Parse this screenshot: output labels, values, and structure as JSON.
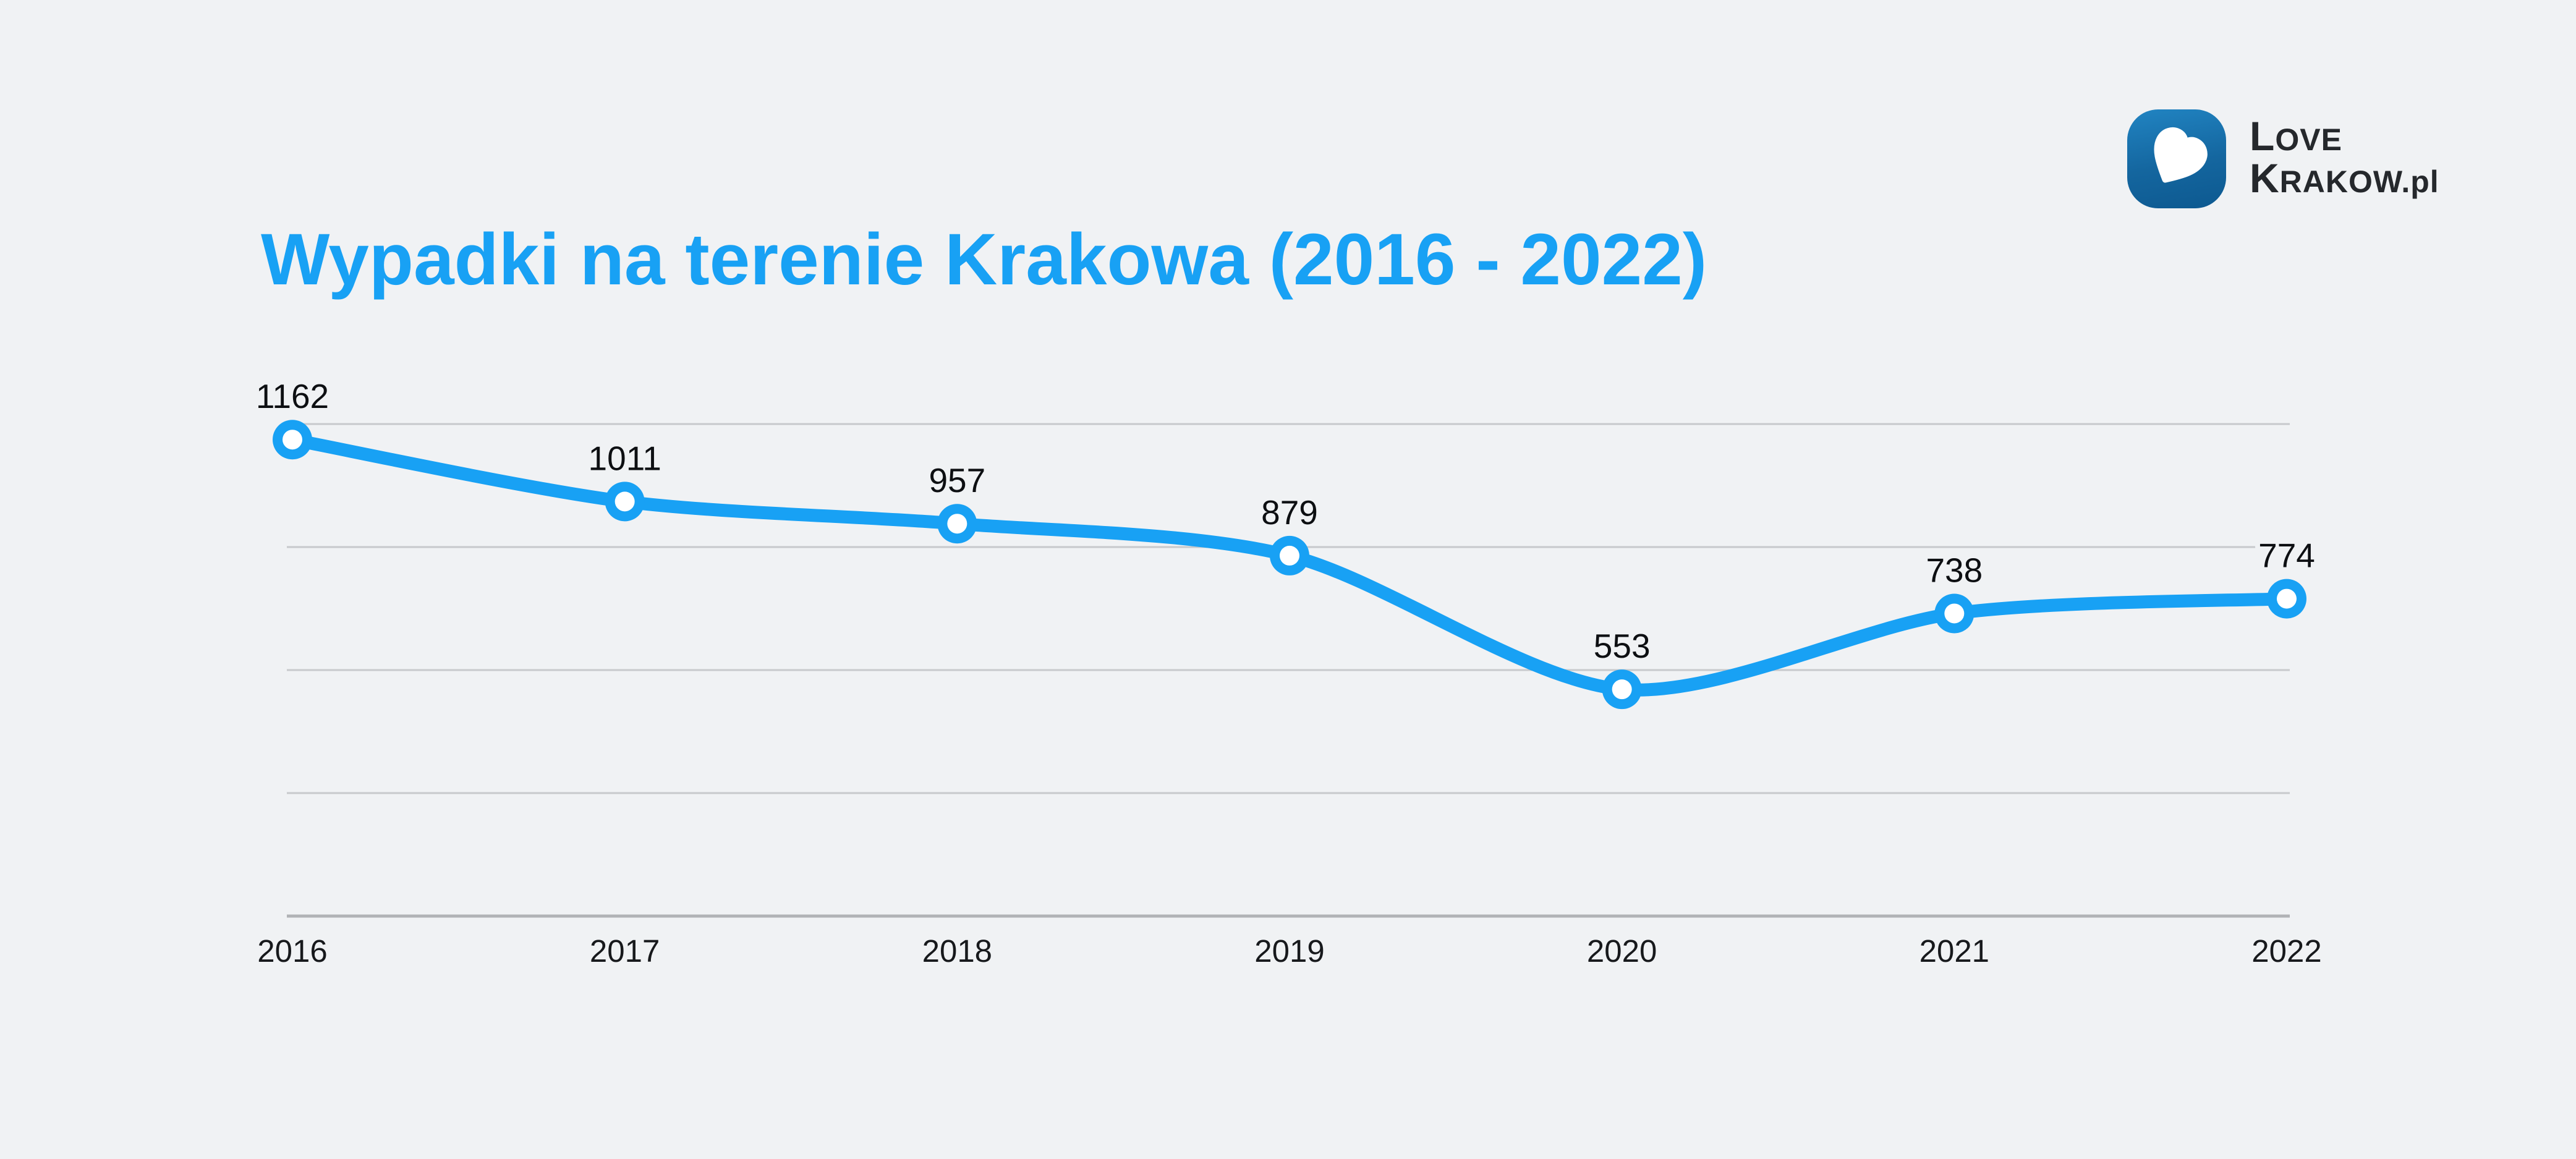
{
  "header": {
    "title": "Wypadki na terenie Krakowa (2016 - 2022)"
  },
  "logo": {
    "name": "LOVE KRAKOW.pl",
    "line1_cap": "L",
    "line1_rest": "OVE",
    "line2_cap": "K",
    "line2_rest": "RAKOW",
    "line2_suffix": ".pl",
    "icon": "heart-icon"
  },
  "colors": {
    "background": "#f0f2f4",
    "accent_blue": "#18a1f4",
    "title_blue": "#18a1f4",
    "gridline": "#c7c9cc",
    "axis_line": "#b1b3b6",
    "value_label": "#0d0f12",
    "year_label": "#17191c",
    "logo_badge_top": "#2184c2",
    "logo_badge_bottom": "#0d5990",
    "marker_fill": "#ffffff"
  },
  "chart_data": {
    "type": "line",
    "title": "Wypadki na terenie Krakowa (2016 - 2022)",
    "categories": [
      "2016",
      "2017",
      "2018",
      "2019",
      "2020",
      "2021",
      "2022"
    ],
    "values": [
      1162,
      1011,
      957,
      879,
      553,
      738,
      774
    ],
    "point_labels": [
      "1162",
      "1011",
      "957",
      "879",
      "553",
      "738",
      "774"
    ],
    "xlabel": "",
    "ylabel": "",
    "ylim": [
      0,
      1200
    ],
    "ytick_step": 300,
    "y_axis_labels_visible": false,
    "grid": "horizontal",
    "legend": "none",
    "marker": "ring",
    "line_style": "smooth-thick"
  }
}
